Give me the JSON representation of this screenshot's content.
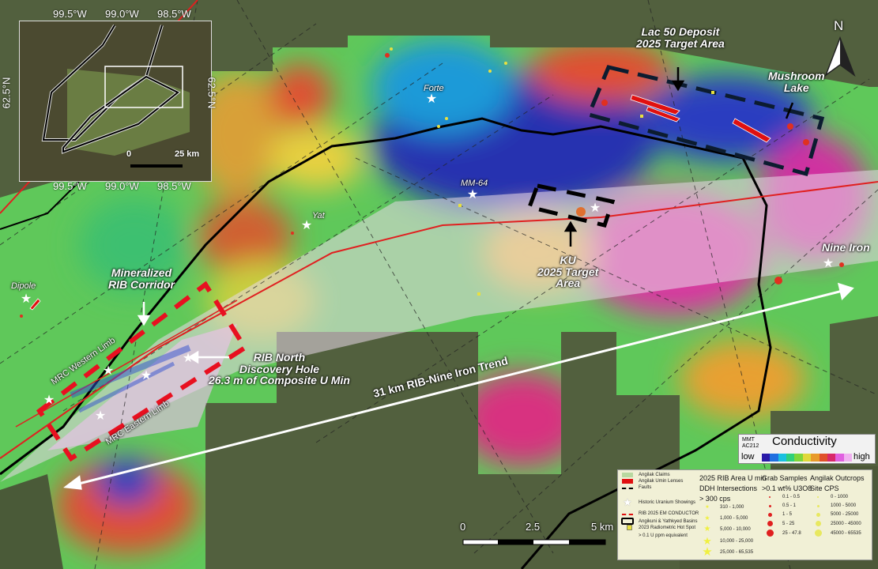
{
  "map": {
    "labels": {
      "lac50": "Lac 50 Deposit",
      "lac50_sub": "2025 Target Area",
      "mushroom": "Mushroom",
      "mushroom_sub": "Lake",
      "forte": "Forte",
      "mm64": "MM-64",
      "yat": "Yat",
      "ku": "KU",
      "ku_sub1": "2025 Target",
      "ku_sub2": "Area",
      "nine_iron": "Nine Iron",
      "dipole": "Dipole",
      "corridor1": "Mineralized",
      "corridor2": "RIB Corridor",
      "rib1": "RIB North",
      "rib2": "Discovery Hole",
      "rib3": "26.3 m of Composite U Min",
      "western_limb": "MRC Western Limb",
      "eastern_limb": "MRC Eastern Limb",
      "trend": "31 km RIB-Nine Iron Trend"
    },
    "north_arrow": "N",
    "scale": {
      "ticks": [
        "0",
        "2.5",
        "5 km"
      ]
    }
  },
  "inset": {
    "top_ticks": [
      "99.5°W",
      "99.0°W",
      "98.5°W"
    ],
    "bottom_ticks": [
      "99.5°W",
      "99.0°W",
      "98.5°W"
    ],
    "lat_left": "62.5°N",
    "lat_right": "62.5°N",
    "scale": [
      "0",
      "25 km"
    ]
  },
  "conductivity": {
    "source1": "MMT",
    "source2": "AC212",
    "title": "Conductivity",
    "low": "low",
    "high": "high",
    "colors": [
      "#2a1aa8",
      "#1f6fe0",
      "#19c0e0",
      "#2fd07a",
      "#7fd63a",
      "#e0d83a",
      "#e89a2a",
      "#e0502a",
      "#d8286a",
      "#e060e0",
      "#f0b0f0"
    ]
  },
  "legend": {
    "col1": [
      {
        "label": "Angilak Claims",
        "symbol": "claims"
      },
      {
        "label": "Angilak Umin Lenses",
        "symbol": "lenses"
      },
      {
        "label": "Faults",
        "symbol": "faults"
      },
      {
        "label": "Historic Uranium Showings",
        "symbol": "star"
      },
      {
        "label": "RIB 2025 EM CONDUCTOR",
        "symbol": "conductor"
      },
      {
        "label": "Angikuni & Yathkyed Basins",
        "symbol": "basins"
      },
      {
        "label": "2023 Radiometric Hot Spot",
        "symbol": "hotspot"
      },
      {
        "label": "> 0.1 U ppm equivalent",
        "symbol": ""
      }
    ],
    "ddh": {
      "title1": "2025 RIB Area U min",
      "title2": "DDH Intersections",
      "title3": "> 300 cps",
      "items": [
        "310 - 1,000",
        "1,000 - 5,000",
        "5,000 - 10,000",
        "10,000 - 25,000",
        "25,000 - 65,535"
      ]
    },
    "grab": {
      "title1": "Grab Samples",
      "title2": ">0.1 wt% U3O8",
      "items": [
        "0.1 - 0.5",
        "0.5 - 1",
        "1 - 5",
        "5 - 25",
        "25 - 47.8"
      ]
    },
    "outcrops": {
      "title1": "Angilak Outcrops",
      "title2": "Site CPS",
      "items": [
        "0 - 1000",
        "1000 - 5000",
        "5000 - 25000",
        "25000 - 45000",
        "45000 - 65535"
      ]
    }
  }
}
